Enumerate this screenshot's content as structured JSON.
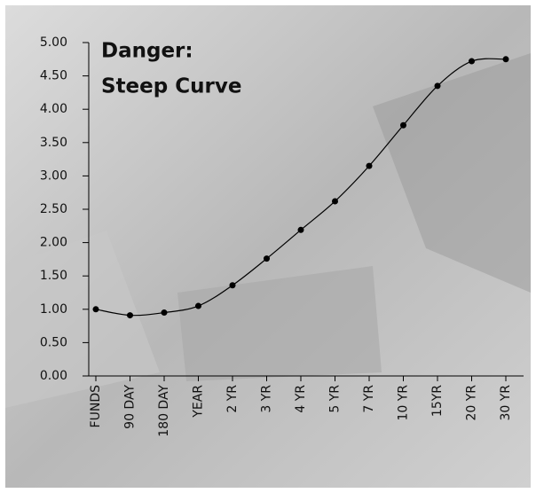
{
  "chart_data": {
    "type": "line",
    "title": [
      "Danger:",
      "Steep Curve"
    ],
    "categories": [
      "FUNDS",
      "90 DAY",
      "180 DAY",
      "YEAR",
      "2 YR",
      "3 YR",
      "4 YR",
      "5 YR",
      "7 YR",
      "10 YR",
      "15YR",
      "20 YR",
      "30 YR"
    ],
    "values": [
      1.0,
      0.91,
      0.95,
      1.05,
      1.36,
      1.76,
      2.19,
      2.62,
      3.15,
      3.76,
      4.35,
      4.72,
      4.75
    ],
    "color": "#000000",
    "ylim": [
      0,
      5
    ],
    "yticks": [
      {
        "value": 0,
        "label": "0.00"
      },
      {
        "value": 0.5,
        "label": "0.50"
      },
      {
        "value": 1,
        "label": "1.00"
      },
      {
        "value": 1.5,
        "label": "1.50"
      },
      {
        "value": 2,
        "label": "2.00"
      },
      {
        "value": 2.5,
        "label": "2.50"
      },
      {
        "value": 3,
        "label": "3.00"
      },
      {
        "value": 3.5,
        "label": "3.50"
      },
      {
        "value": 4,
        "label": "4.00"
      },
      {
        "value": 4.5,
        "label": "4.50"
      },
      {
        "value": 5,
        "label": "5.00"
      }
    ]
  }
}
